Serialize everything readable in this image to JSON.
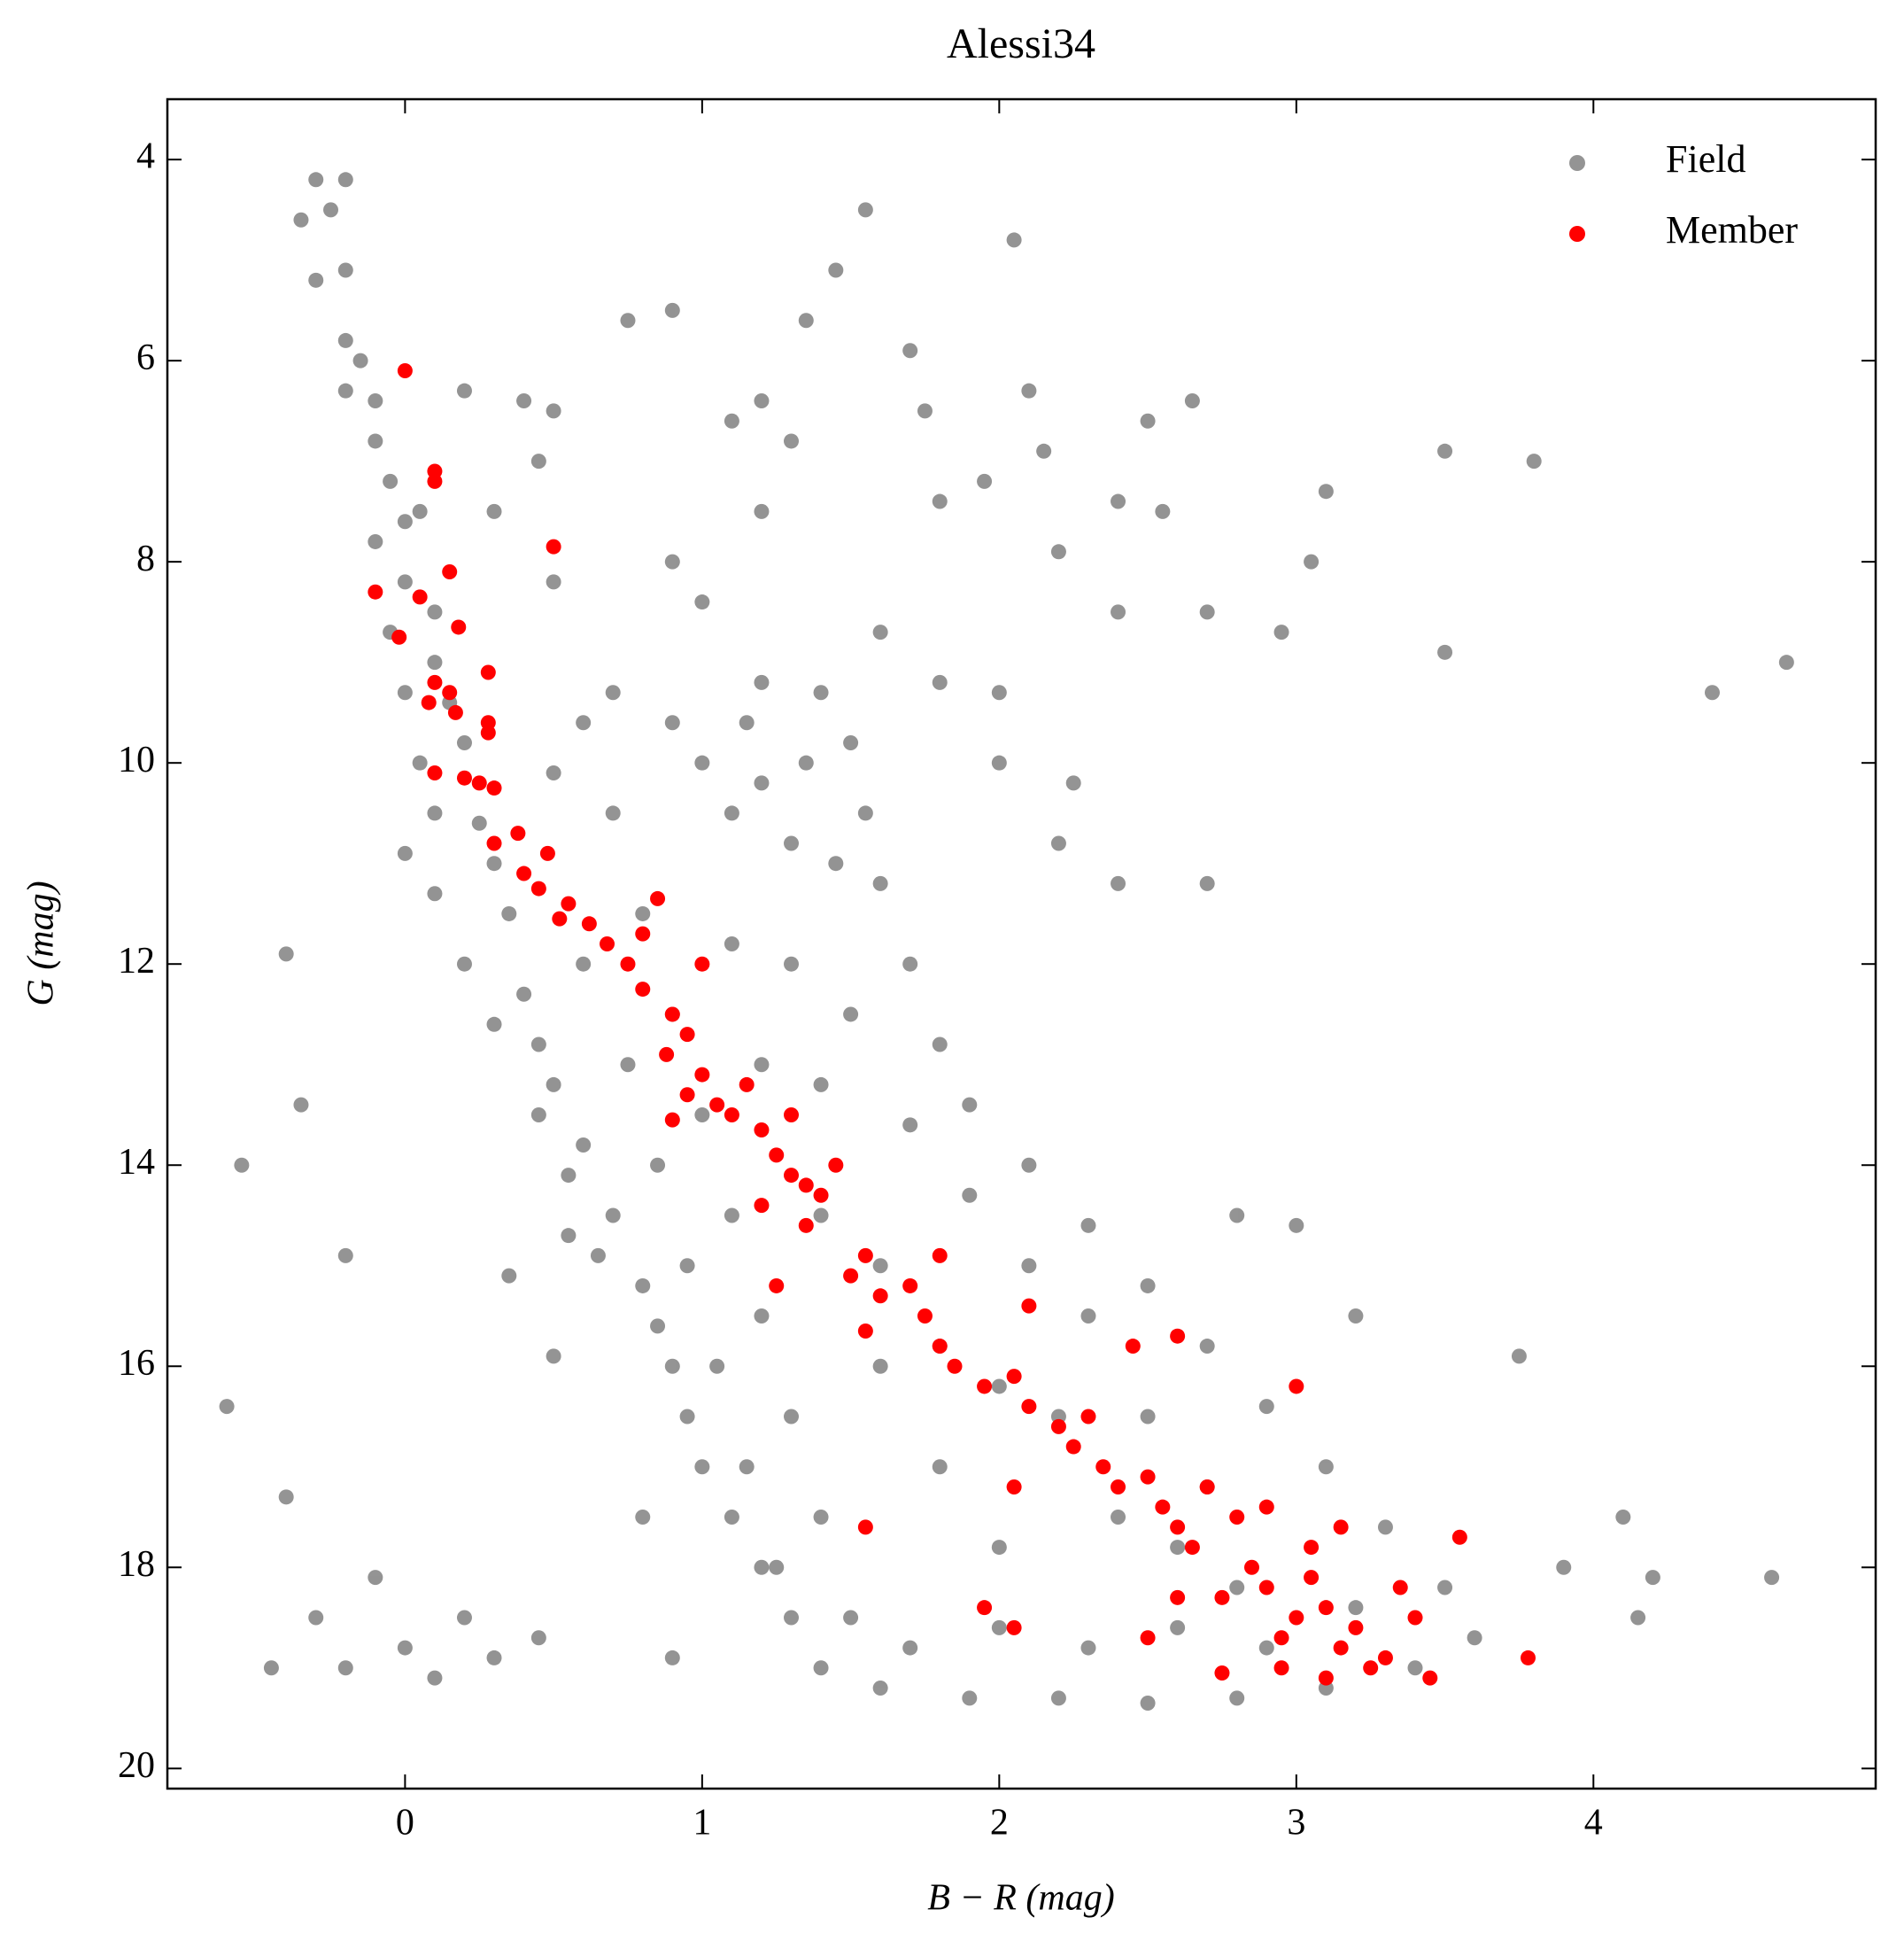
{
  "chart_data": {
    "type": "scatter",
    "title": "Alessi34",
    "x_label": "B − R (mag)",
    "y_label": "G (mag)",
    "xlim": [
      -0.8,
      4.95
    ],
    "ylim": [
      3.4,
      20.2
    ],
    "y_inverted": true,
    "xticks": [
      0,
      1,
      2,
      3,
      4
    ],
    "yticks": [
      4,
      6,
      8,
      10,
      12,
      14,
      16,
      18,
      20
    ],
    "grid": false,
    "legend": "upper right",
    "series": [
      {
        "name": "Field",
        "color": "#000000",
        "alpha": 0.42,
        "x": [
          -0.3,
          -0.2,
          -0.35,
          -0.25,
          -0.3,
          -0.2,
          -0.2,
          -0.15,
          -0.1,
          -0.2,
          -0.1,
          -0.05,
          0,
          -0.1,
          0.05,
          0,
          0.1,
          -0.05,
          0.1,
          0.15,
          0,
          0.2,
          0.05,
          0.1,
          0,
          0.25,
          0.3,
          0.1,
          0.35,
          0.2,
          0.4,
          0.3,
          0.45,
          0.5,
          0.45,
          0.6,
          0.55,
          0.7,
          0.65,
          0.8,
          0.85,
          0.9,
          0.95,
          1.0,
          1.1,
          1.2,
          1.3,
          1.4,
          1.6,
          1.9,
          2.2,
          2.5,
          2.8,
          3.1,
          3.4,
          3.6,
          3.5,
          3.3,
          3.1,
          2.9,
          2.7,
          2.5,
          2.3,
          2.1,
          1.9,
          1.8,
          1.7,
          1.6,
          1.55,
          1.5,
          1.4,
          1.2,
          1.15,
          1.2,
          1.3,
          1.1,
          1.0,
          0.9,
          0.7,
          0.6,
          0.5,
          0.7,
          0.8,
          0.9,
          1.0,
          1.1,
          1.2,
          1.3,
          1.4,
          1.5,
          1.7,
          2.0,
          2.3,
          2.6,
          2.9,
          1.6,
          1.8,
          2.0,
          2.2,
          2.4,
          1.4,
          1.6,
          1.8,
          2.0,
          1.2,
          1.4,
          1.5,
          1.3,
          1.1,
          1.45,
          1.35,
          0.6,
          0.75,
          0.85,
          0.95,
          1.05,
          1.15,
          1.25,
          2.6,
          2.8,
          3.2,
          2.5,
          2.7,
          2.3,
          2.1,
          1.9,
          1.7,
          -0.55,
          -0.6,
          -0.4,
          -0.35,
          -0.2,
          -0.4,
          -0.3,
          -0.2,
          -0.1,
          0,
          0.1,
          0.2,
          0.3,
          -0.45,
          0.45,
          0.5,
          0.55,
          0.35,
          0.9,
          0.8,
          0.75,
          0.9,
          1.35,
          1.55,
          1.45,
          2.05,
          1.7,
          1.75,
          2.1,
          2.65,
          2.5,
          3.5,
          3.8,
          3.1,
          3.05,
          3.5,
          2.95,
          2.7,
          4.4,
          4.65,
          4.6,
          4.2,
          4.1,
          4.15,
          3.9,
          3.75,
          3.2,
          3.0,
          2.8,
          2.4,
          2.7,
          2.25,
          2.2,
          2.4,
          2.4,
          2.55,
          2.2,
          1.2,
          1.1,
          1.3,
          1.2,
          1.0,
          0.9,
          0.5,
          0.45,
          0.2,
          0.4,
          1.95,
          2.15,
          1.8,
          0.5,
          0.3,
          1.6,
          1.8,
          2.0,
          2.0
        ],
        "values": [
          4.2,
          4.2,
          4.6,
          4.5,
          5.2,
          5.1,
          5.8,
          6.0,
          6.4,
          6.3,
          6.8,
          7.2,
          7.6,
          7.8,
          7.5,
          8.2,
          8.5,
          8.7,
          9.0,
          9.4,
          9.3,
          9.8,
          10.0,
          10.5,
          10.9,
          10.6,
          11.0,
          11.3,
          11.5,
          12.0,
          12.3,
          12.6,
          12.8,
          13.2,
          13.5,
          13.8,
          14.1,
          14.5,
          14.9,
          15.2,
          15.6,
          16.0,
          16.5,
          17.0,
          17.5,
          18.0,
          18.5,
          19.0,
          19.2,
          19.3,
          19.3,
          19.35,
          19.3,
          19.2,
          19.0,
          18.7,
          18.2,
          17.6,
          17.0,
          16.4,
          15.8,
          15.2,
          14.6,
          14.0,
          13.4,
          12.8,
          12.0,
          11.2,
          10.5,
          9.8,
          9.3,
          9.2,
          9.6,
          10.2,
          10.8,
          10.5,
          10.0,
          9.6,
          9.3,
          9.6,
          10.1,
          10.5,
          11.5,
          12.5,
          13.5,
          14.5,
          15.5,
          16.5,
          17.5,
          18.5,
          18.8,
          18.6,
          18.8,
          18.6,
          18.8,
          16.0,
          17.0,
          17.8,
          16.5,
          17.5,
          14.5,
          15.0,
          15.8,
          16.2,
          13.0,
          13.2,
          12.5,
          12.0,
          11.8,
          11.0,
          10.0,
          12.0,
          13.0,
          14.0,
          15.0,
          16.0,
          17.0,
          18.0,
          17.8,
          18.2,
          18.4,
          16.5,
          17.2,
          15.5,
          15.0,
          14.3,
          13.6,
          14.0,
          16.4,
          11.9,
          13.4,
          14.9,
          17.3,
          18.5,
          19.0,
          18.1,
          18.8,
          19.1,
          18.5,
          18.9,
          19.0,
          18.7,
          15.9,
          14.7,
          15.1,
          18.9,
          17.5,
          5.6,
          5.5,
          5.6,
          4.5,
          5.1,
          4.8,
          5.9,
          6.5,
          6.3,
          6.4,
          6.6,
          6.9,
          7.0,
          7.3,
          8.0,
          8.9,
          8.7,
          8.5,
          9.3,
          9.0,
          18.1,
          18.1,
          17.5,
          18.5,
          18.0,
          15.9,
          15.5,
          14.6,
          14.5,
          11.2,
          11.2,
          10.2,
          10.8,
          8.5,
          7.4,
          7.5,
          7.9,
          6.4,
          6.6,
          6.8,
          7.5,
          8.4,
          8.0,
          6.5,
          7.0,
          6.3,
          6.4,
          7.2,
          6.9,
          7.4,
          8.2,
          7.5,
          8.7,
          9.2,
          9.3,
          10.0
        ]
      },
      {
        "name": "Member",
        "color": "#ff0000",
        "alpha": 1,
        "x": [
          0,
          0.1,
          0.1,
          0.5,
          0.15,
          -0.1,
          0.05,
          0.18,
          -0.02,
          0.28,
          0.1,
          0.15,
          0.08,
          0.17,
          0.28,
          0.28,
          0.1,
          0.2,
          0.3,
          0.25,
          0.38,
          0.3,
          0.48,
          0.4,
          0.45,
          0.55,
          0.52,
          0.62,
          0.68,
          0.85,
          0.8,
          0.75,
          0.8,
          0.9,
          0.95,
          1.0,
          0.88,
          1.0,
          0.95,
          1.05,
          1.1,
          0.9,
          1.15,
          1.2,
          1.3,
          1.25,
          1.3,
          1.2,
          1.35,
          1.45,
          1.4,
          1.35,
          1.25,
          1.55,
          1.5,
          1.6,
          1.7,
          1.75,
          1.8,
          1.55,
          1.8,
          1.85,
          1.95,
          2.05,
          2.1,
          2.2,
          2.1,
          2.25,
          2.3,
          2.35,
          2.4,
          2.5,
          2.45,
          2.6,
          2.55,
          2.6,
          2.7,
          2.65,
          2.8,
          2.85,
          2.9,
          2.75,
          3.0,
          3.05,
          2.95,
          3.1,
          3.15,
          3.2,
          3.0,
          3.3,
          3.4,
          3.25,
          3.1,
          3.45,
          3.55,
          3.78,
          2.5,
          2.6,
          2.75,
          2.05,
          1.95,
          1.55,
          2.05,
          2.9,
          3.05,
          3.15,
          2.95,
          3.35
        ],
        "values": [
          6.1,
          7.1,
          7.2,
          7.85,
          8.1,
          8.3,
          8.35,
          8.65,
          8.75,
          9.1,
          9.2,
          9.3,
          9.4,
          9.5,
          9.6,
          9.7,
          10.1,
          10.15,
          10.25,
          10.2,
          10.7,
          10.8,
          10.9,
          11.1,
          11.25,
          11.4,
          11.55,
          11.6,
          11.8,
          11.35,
          11.7,
          12.0,
          12.25,
          12.5,
          12.7,
          12.0,
          12.9,
          13.1,
          13.3,
          13.4,
          13.5,
          13.55,
          13.2,
          13.65,
          13.5,
          13.9,
          14.1,
          14.4,
          14.2,
          14.0,
          14.3,
          14.6,
          15.2,
          14.9,
          15.1,
          15.3,
          15.2,
          15.5,
          14.9,
          15.65,
          15.8,
          16.0,
          16.2,
          16.1,
          16.4,
          16.6,
          15.4,
          16.8,
          16.5,
          17.0,
          17.2,
          17.1,
          15.8,
          15.7,
          17.4,
          17.6,
          17.2,
          17.8,
          17.5,
          18.0,
          18.2,
          18.3,
          18.5,
          18.1,
          18.7,
          18.4,
          18.8,
          18.6,
          16.2,
          18.9,
          18.5,
          19.0,
          19.1,
          19.1,
          17.7,
          18.9,
          18.7,
          18.3,
          19.05,
          18.6,
          18.4,
          17.6,
          17.2,
          17.4,
          17.8,
          17.6,
          19.0,
          18.2
        ]
      }
    ]
  }
}
